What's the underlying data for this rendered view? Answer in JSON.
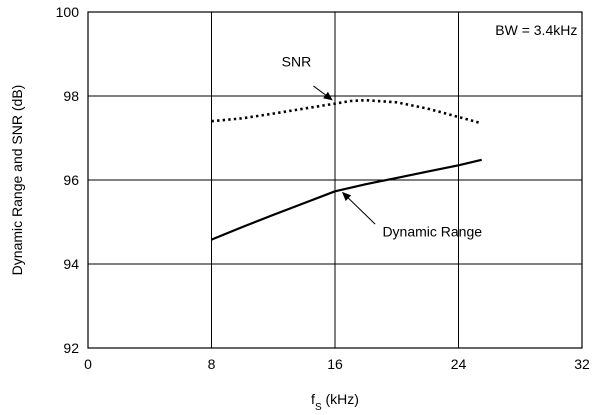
{
  "chart_data": {
    "type": "line",
    "title": "",
    "xlabel": "f",
    "xlabel_sub": "S",
    "xlabel_unit": " (kHz)",
    "ylabel": "Dynamic Range and SNR (dB)",
    "xlim": [
      0,
      32
    ],
    "ylim": [
      92,
      100
    ],
    "x_ticks": [
      0,
      8,
      16,
      24,
      32
    ],
    "y_ticks": [
      92,
      94,
      96,
      98,
      100
    ],
    "grid": true,
    "legend": "none",
    "series": [
      {
        "name": "SNR",
        "style": "dotted",
        "x": [
          8,
          10,
          12,
          14,
          16,
          17,
          18,
          20,
          22,
          24,
          25.5
        ],
        "y": [
          97.4,
          97.47,
          97.58,
          97.7,
          97.82,
          97.88,
          97.9,
          97.85,
          97.7,
          97.5,
          97.35
        ]
      },
      {
        "name": "Dynamic Range",
        "style": "solid",
        "x": [
          8,
          10,
          12,
          14,
          16,
          18,
          20,
          22,
          24,
          25.5
        ],
        "y": [
          94.58,
          94.88,
          95.17,
          95.45,
          95.73,
          95.9,
          96.05,
          96.2,
          96.35,
          96.48
        ]
      }
    ],
    "annotations": [
      {
        "text": "SNR",
        "label_at": [
          13.5,
          98.7
        ],
        "arrow_from": [
          14.6,
          98.24
        ],
        "arrow_to": [
          15.8,
          97.91
        ]
      },
      {
        "text": "Dynamic Range",
        "label_at": [
          22.3,
          94.65
        ],
        "arrow_from": [
          18.6,
          94.95
        ],
        "arrow_to": [
          16.5,
          95.7
        ]
      },
      {
        "text": "BW = 3.4kHz",
        "label_at": [
          31.7,
          99.45
        ],
        "anchor": "end"
      }
    ]
  }
}
